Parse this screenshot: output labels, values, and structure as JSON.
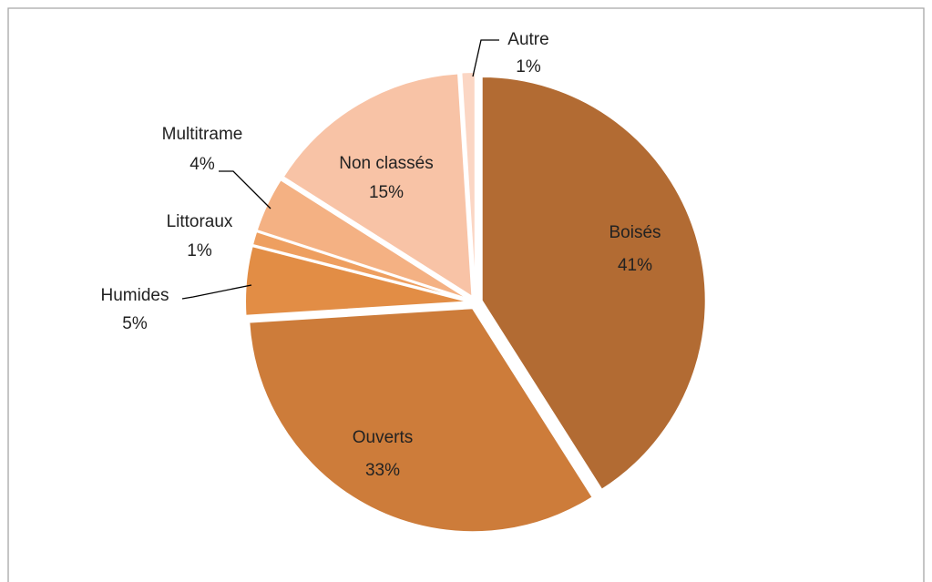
{
  "chart_data": {
    "type": "pie",
    "categories": [
      "Boisés",
      "Ouverts",
      "Humides",
      "Littoraux",
      "Multitrame",
      "Non classés",
      "Autre"
    ],
    "values": [
      41,
      33,
      5,
      1,
      4,
      15,
      1
    ],
    "value_labels": [
      "41%",
      "33%",
      "5%",
      "1%",
      "4%",
      "15%",
      "1%"
    ],
    "colors": [
      "#b26b33",
      "#cd7c3a",
      "#e28d45",
      "#ee9f60",
      "#f4b183",
      "#f8c3a6",
      "#fbd6c4"
    ]
  }
}
